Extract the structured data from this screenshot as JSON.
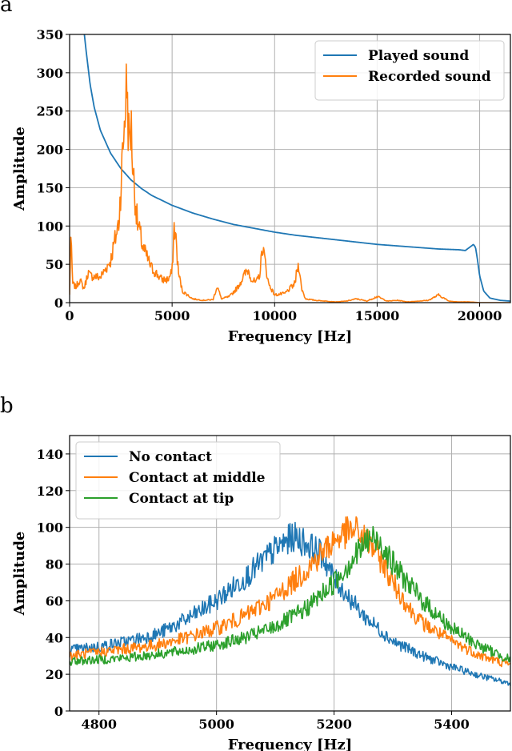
{
  "chart_data": [
    {
      "panel": "a",
      "type": "line",
      "xlabel": "Frequency [Hz]",
      "ylabel": "Amplitude",
      "xlim": [
        0,
        21500
      ],
      "ylim": [
        0,
        350
      ],
      "xticks": [
        0,
        5000,
        10000,
        15000,
        20000
      ],
      "yticks": [
        0,
        50,
        100,
        150,
        200,
        250,
        300,
        350
      ],
      "grid": true,
      "legend_position": "top-right",
      "series": [
        {
          "name": "Played sound",
          "color": "#1f77b4",
          "x": [
            720,
            800,
            1000,
            1200,
            1500,
            2000,
            2500,
            3000,
            3500,
            4000,
            5000,
            6000,
            7000,
            8000,
            9000,
            10000,
            11000,
            12000,
            13000,
            14000,
            15000,
            16000,
            17000,
            18000,
            19000,
            19300,
            19500,
            19700,
            19800,
            19900,
            20000,
            20200,
            20500,
            21000,
            21500
          ],
          "y": [
            350,
            330,
            285,
            255,
            225,
            195,
            175,
            160,
            149,
            140,
            127,
            117,
            109,
            102,
            97,
            92,
            88,
            85,
            82,
            79,
            76,
            74,
            72,
            70,
            69,
            68,
            72,
            76,
            72,
            55,
            35,
            15,
            6,
            3,
            2
          ]
        },
        {
          "name": "Recorded sound",
          "color": "#ff7f0e",
          "x": [
            0,
            60,
            150,
            300,
            500,
            700,
            800,
            900,
            1000,
            1500,
            2000,
            2400,
            2600,
            2700,
            2800,
            2850,
            2900,
            3000,
            3100,
            3300,
            3600,
            4000,
            4500,
            4800,
            5000,
            5100,
            5200,
            5300,
            5500,
            6000,
            6500,
            7000,
            7200,
            7400,
            7800,
            8200,
            8500,
            8700,
            8900,
            9100,
            9300,
            9400,
            9500,
            9700,
            10000,
            10500,
            11000,
            11100,
            11200,
            11300,
            11500,
            12000,
            12500,
            13000,
            13500,
            14000,
            14500,
            15000,
            15500,
            16000,
            16500,
            17000,
            17500,
            18000,
            18500,
            19000,
            19500,
            20000,
            21500
          ],
          "y": [
            10,
            85,
            25,
            20,
            30,
            18,
            28,
            40,
            35,
            33,
            55,
            105,
            200,
            250,
            292,
            240,
            210,
            230,
            170,
            105,
            70,
            45,
            30,
            30,
            40,
            100,
            80,
            40,
            15,
            5,
            3,
            4,
            22,
            5,
            8,
            20,
            35,
            43,
            30,
            25,
            40,
            75,
            60,
            25,
            10,
            12,
            25,
            45,
            49,
            20,
            5,
            3,
            2,
            1,
            2,
            5,
            2,
            8,
            2,
            3,
            1,
            2,
            3,
            10,
            2,
            1,
            1,
            0,
            0
          ]
        }
      ]
    },
    {
      "panel": "b",
      "type": "line",
      "xlabel": "Frequency [Hz]",
      "ylabel": "Amplitude",
      "xlim": [
        4750,
        5500
      ],
      "ylim": [
        0,
        150
      ],
      "xticks": [
        4800,
        5000,
        5200,
        5400
      ],
      "yticks": [
        0,
        20,
        40,
        60,
        80,
        100,
        120,
        140
      ],
      "grid": true,
      "legend_position": "top-left",
      "series": [
        {
          "name": "No contact",
          "color": "#1f77b4",
          "x": [
            4750,
            4800,
            4850,
            4900,
            4950,
            5000,
            5050,
            5100,
            5130,
            5150,
            5180,
            5200,
            5230,
            5250,
            5300,
            5350,
            5400,
            5450,
            5500
          ],
          "y": [
            33,
            35,
            38,
            42,
            50,
            60,
            73,
            88,
            95,
            92,
            85,
            72,
            60,
            52,
            38,
            30,
            24,
            19,
            15
          ]
        },
        {
          "name": "Contact at middle",
          "color": "#ff7f0e",
          "x": [
            4750,
            4800,
            4850,
            4900,
            4950,
            5000,
            5050,
            5100,
            5150,
            5200,
            5220,
            5240,
            5270,
            5300,
            5330,
            5350,
            5400,
            5450,
            5500
          ],
          "y": [
            30,
            32,
            34,
            36,
            40,
            45,
            52,
            62,
            76,
            93,
            97,
            98,
            88,
            70,
            55,
            48,
            38,
            30,
            25
          ]
        },
        {
          "name": "Contact at tip",
          "color": "#2ca02c",
          "x": [
            4750,
            4800,
            4850,
            4900,
            4950,
            5000,
            5050,
            5100,
            5150,
            5200,
            5230,
            5260,
            5280,
            5300,
            5330,
            5350,
            5400,
            5450,
            5500
          ],
          "y": [
            27,
            28,
            29,
            31,
            33,
            36,
            40,
            46,
            55,
            70,
            82,
            94,
            92,
            80,
            68,
            60,
            45,
            35,
            28
          ]
        }
      ]
    }
  ]
}
